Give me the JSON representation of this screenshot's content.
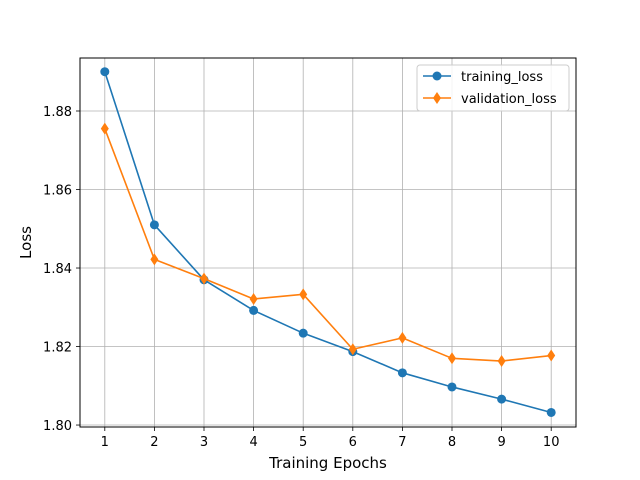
{
  "chart_data": {
    "type": "line",
    "title": "",
    "xlabel": "Training Epochs",
    "ylabel": "Loss",
    "x": [
      1,
      2,
      3,
      4,
      5,
      6,
      7,
      8,
      9,
      10
    ],
    "xlim": [
      0.5,
      10.5
    ],
    "ylim": [
      1.7995,
      1.8935
    ],
    "xticks": [
      1,
      2,
      3,
      4,
      5,
      6,
      7,
      8,
      9,
      10
    ],
    "yticks": [
      1.8,
      1.82,
      1.84,
      1.86,
      1.88
    ],
    "ytick_labels": [
      "1.80",
      "1.82",
      "1.84",
      "1.86",
      "1.88"
    ],
    "grid": true,
    "legend_position": "top-right",
    "series": [
      {
        "name": "training_loss",
        "marker": "circle",
        "color": "#1f77b4",
        "values": [
          1.89,
          1.851,
          1.837,
          1.8292,
          1.8234,
          1.8187,
          1.8133,
          1.8097,
          1.8066,
          1.8032
        ]
      },
      {
        "name": "validation_loss",
        "marker": "diamond",
        "color": "#ff7f0e",
        "values": [
          1.8755,
          1.8422,
          1.8373,
          1.8321,
          1.8333,
          1.8193,
          1.8222,
          1.817,
          1.8163,
          1.8177
        ]
      }
    ]
  }
}
